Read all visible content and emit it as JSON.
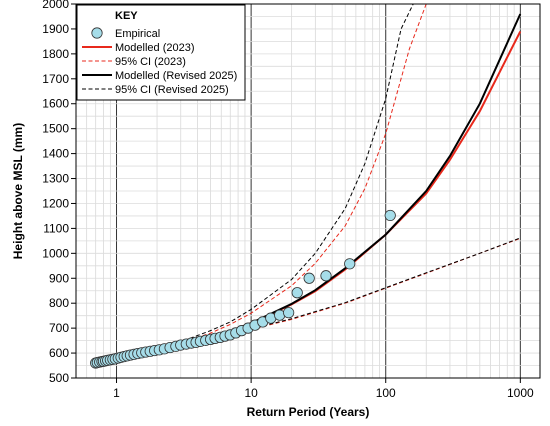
{
  "chart_data": {
    "type": "scatter",
    "title": "",
    "xlabel": "Return Period (Years)",
    "ylabel": "Height above MSL (mm)",
    "x_scale": "log",
    "xlim": [
      0.5,
      1400
    ],
    "ylim": [
      500,
      2000
    ],
    "grid": true,
    "x_ticks": [
      {
        "value": 1,
        "label": "1"
      },
      {
        "value": 10,
        "label": "10"
      },
      {
        "value": 100,
        "label": "100"
      },
      {
        "value": 1000,
        "label": "1000"
      }
    ],
    "y_ticks": [
      {
        "value": 500,
        "label": "500"
      },
      {
        "value": 600,
        "label": "600"
      },
      {
        "value": 700,
        "label": "700"
      },
      {
        "value": 800,
        "label": "800"
      },
      {
        "value": 900,
        "label": "900"
      },
      {
        "value": 1000,
        "label": "1000"
      },
      {
        "value": 1100,
        "label": "1100"
      },
      {
        "value": 1200,
        "label": "1200"
      },
      {
        "value": 1300,
        "label": "1300"
      },
      {
        "value": 1400,
        "label": "1400"
      },
      {
        "value": 1500,
        "label": "1500"
      },
      {
        "value": 1600,
        "label": "1600"
      },
      {
        "value": 1700,
        "label": "1700"
      },
      {
        "value": 1800,
        "label": "1800"
      },
      {
        "value": 1900,
        "label": "1900"
      },
      {
        "value": 2000,
        "label": "2000"
      }
    ],
    "legend": {
      "title": "KEY",
      "position": "top-left",
      "entries": [
        {
          "label": "Empirical",
          "kind": "marker",
          "color": "#a6dde9"
        },
        {
          "label": "Modelled (2023)",
          "kind": "line",
          "color": "#e8291c",
          "dash": "solid"
        },
        {
          "label": "95% CI (2023)",
          "kind": "line",
          "color": "#e8291c",
          "dash": "dashed"
        },
        {
          "label": "Modelled (Revised 2025)",
          "kind": "line",
          "color": "#000000",
          "dash": "solid"
        },
        {
          "label": "95% CI (Revised 2025)",
          "kind": "line",
          "color": "#000000",
          "dash": "dashed"
        }
      ]
    },
    "series": [
      {
        "name": "Empirical",
        "kind": "scatter",
        "color": "#a6dde9",
        "points": [
          [
            0.7,
            560
          ],
          [
            0.72,
            562
          ],
          [
            0.75,
            564
          ],
          [
            0.78,
            566
          ],
          [
            0.8,
            567
          ],
          [
            0.83,
            569
          ],
          [
            0.86,
            571
          ],
          [
            0.9,
            573
          ],
          [
            0.94,
            575
          ],
          [
            0.98,
            577
          ],
          [
            1.03,
            580
          ],
          [
            1.08,
            583
          ],
          [
            1.14,
            586
          ],
          [
            1.2,
            589
          ],
          [
            1.27,
            592
          ],
          [
            1.35,
            595
          ],
          [
            1.44,
            598
          ],
          [
            1.54,
            601
          ],
          [
            1.65,
            604
          ],
          [
            1.78,
            607
          ],
          [
            1.92,
            610
          ],
          [
            2.08,
            613
          ],
          [
            2.27,
            617
          ],
          [
            2.5,
            622
          ],
          [
            2.76,
            627
          ],
          [
            3.0,
            632
          ],
          [
            3.3,
            636
          ],
          [
            3.6,
            640
          ],
          [
            3.9,
            643
          ],
          [
            4.2,
            647
          ],
          [
            4.6,
            651
          ],
          [
            5.0,
            655
          ],
          [
            5.4,
            659
          ],
          [
            5.9,
            663
          ],
          [
            6.4,
            668
          ],
          [
            7.0,
            673
          ],
          [
            7.7,
            681
          ],
          [
            8.5,
            690
          ],
          [
            9.5,
            700
          ],
          [
            10.7,
            712
          ],
          [
            12.2,
            725
          ],
          [
            14.0,
            740
          ],
          [
            16.3,
            752
          ],
          [
            19.0,
            762
          ],
          [
            22.0,
            842
          ],
          [
            27.0,
            900
          ],
          [
            36.0,
            910
          ],
          [
            54.0,
            958
          ],
          [
            108.0,
            1152
          ]
        ]
      },
      {
        "name": "Modelled (2023)",
        "kind": "line",
        "color": "#e8291c",
        "dash": "solid",
        "points": [
          [
            0.7,
            560
          ],
          [
            1,
            575
          ],
          [
            2,
            608
          ],
          [
            3,
            635
          ],
          [
            5,
            660
          ],
          [
            7,
            686
          ],
          [
            10,
            718
          ],
          [
            20,
            795
          ],
          [
            30,
            848
          ],
          [
            50,
            935
          ],
          [
            100,
            1075
          ],
          [
            200,
            1240
          ],
          [
            300,
            1375
          ],
          [
            500,
            1570
          ],
          [
            1000,
            1890
          ]
        ]
      },
      {
        "name": "95% CI (2023)",
        "kind": "line",
        "color": "#e8291c",
        "dash": "dashed",
        "points": [
          [
            0.7,
            560
          ],
          [
            1,
            576
          ],
          [
            2,
            610
          ],
          [
            3,
            640
          ],
          [
            5,
            680
          ],
          [
            7,
            715
          ],
          [
            10,
            760
          ],
          [
            20,
            870
          ],
          [
            30,
            960
          ],
          [
            50,
            1110
          ],
          [
            70,
            1260
          ],
          [
            100,
            1480
          ],
          [
            150,
            1820
          ],
          [
            200,
            2050
          ]
        ]
      },
      {
        "name": "95% CI (2023) lower",
        "kind": "line",
        "color": "#e8291c",
        "dash": "dashed",
        "points": [
          [
            3,
            632
          ],
          [
            5,
            658
          ],
          [
            10,
            695
          ],
          [
            20,
            735
          ],
          [
            50,
            800
          ],
          [
            100,
            860
          ],
          [
            200,
            920
          ],
          [
            500,
            1000
          ],
          [
            1000,
            1060
          ]
        ]
      },
      {
        "name": "Modelled (Revised 2025)",
        "kind": "line",
        "color": "#000000",
        "dash": "solid",
        "points": [
          [
            0.7,
            560
          ],
          [
            1,
            575
          ],
          [
            2,
            608
          ],
          [
            3,
            635
          ],
          [
            5,
            662
          ],
          [
            7,
            688
          ],
          [
            10,
            720
          ],
          [
            20,
            797
          ],
          [
            30,
            852
          ],
          [
            50,
            940
          ],
          [
            100,
            1075
          ],
          [
            200,
            1250
          ],
          [
            300,
            1390
          ],
          [
            500,
            1600
          ],
          [
            1000,
            1960
          ]
        ]
      },
      {
        "name": "95% CI (Revised 2025)",
        "kind": "line",
        "color": "#000000",
        "dash": "dashed",
        "points": [
          [
            0.7,
            560
          ],
          [
            1,
            577
          ],
          [
            2,
            612
          ],
          [
            3,
            645
          ],
          [
            5,
            690
          ],
          [
            7,
            725
          ],
          [
            10,
            775
          ],
          [
            20,
            895
          ],
          [
            30,
            1000
          ],
          [
            50,
            1180
          ],
          [
            70,
            1360
          ],
          [
            100,
            1620
          ],
          [
            130,
            1900
          ],
          [
            160,
            2050
          ]
        ]
      },
      {
        "name": "95% CI (Revised 2025) lower",
        "kind": "line",
        "color": "#000000",
        "dash": "dashed",
        "points": [
          [
            3,
            632
          ],
          [
            5,
            658
          ],
          [
            10,
            697
          ],
          [
            20,
            738
          ],
          [
            50,
            802
          ],
          [
            100,
            862
          ],
          [
            200,
            922
          ],
          [
            500,
            1000
          ],
          [
            1000,
            1062
          ]
        ]
      }
    ]
  }
}
